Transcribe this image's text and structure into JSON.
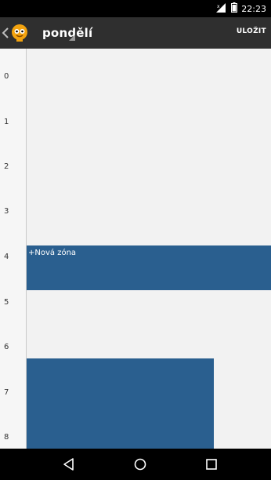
{
  "status_bar": {
    "time": "22:23"
  },
  "action_bar": {
    "title": "pondělí",
    "save_label": "ULOŽIT"
  },
  "calendar": {
    "hours": [
      "0",
      "1",
      "2",
      "3",
      "4",
      "5",
      "6",
      "7",
      "8"
    ],
    "new_zone_label": "+Nová zóna"
  },
  "colors": {
    "zone": "#2a5f8f",
    "action_bar": "#2f2f2f"
  },
  "nav": {
    "back": "back-icon",
    "home": "home-icon",
    "recents": "recents-icon"
  }
}
